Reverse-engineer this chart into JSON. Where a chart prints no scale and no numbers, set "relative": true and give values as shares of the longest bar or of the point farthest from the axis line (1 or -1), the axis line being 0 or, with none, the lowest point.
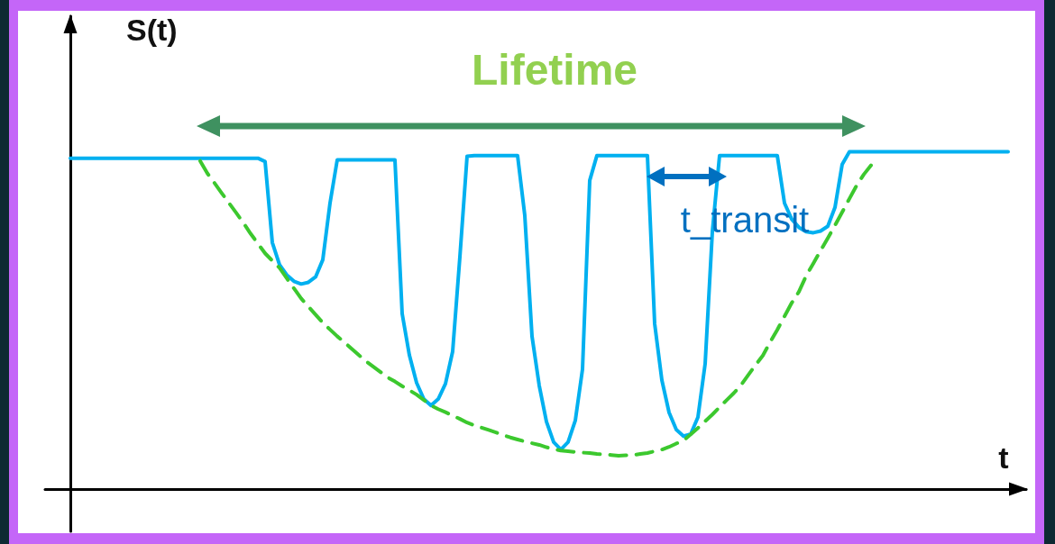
{
  "chart_data": {
    "type": "line",
    "relative": true,
    "xlabel": "t",
    "ylabel": "S(t)",
    "annotations": [
      "Lifetime",
      "t_transit"
    ],
    "marker": "none",
    "categories": [
      null,
      null,
      null,
      null,
      null,
      null,
      null,
      null,
      null,
      null,
      null,
      null,
      null,
      null,
      null,
      null,
      null,
      null,
      null,
      null,
      null,
      null,
      null,
      null,
      null,
      null,
      null,
      null,
      null,
      null,
      null,
      null,
      null,
      null,
      null,
      null,
      null,
      null,
      null,
      null,
      null,
      null,
      null,
      null,
      null,
      null,
      null,
      null,
      null,
      null,
      null,
      null,
      null,
      null,
      null,
      null,
      null,
      null,
      null,
      null,
      null,
      null,
      null,
      null,
      null,
      null,
      null,
      null,
      null,
      null,
      null,
      null,
      null,
      null,
      null,
      null,
      null,
      null,
      null,
      null,
      null,
      null,
      null,
      null,
      null,
      null,
      null,
      null,
      null,
      null,
      null,
      null,
      null,
      null,
      null,
      null,
      null,
      null,
      null,
      null,
      null,
      null,
      null,
      null,
      null,
      null,
      null,
      null,
      null,
      null,
      null,
      null,
      null,
      null,
      null,
      null,
      null,
      null,
      null,
      null,
      null,
      null,
      null,
      null,
      null,
      null,
      null,
      null,
      null,
      null,
      null
    ],
    "series": [
      {
        "color": "#00b0f0",
        "line_style": "solid",
        "values": [
          0.981,
          0.981,
          0.981,
          0.981,
          0.981,
          0.981,
          0.981,
          0.981,
          0.981,
          0.981,
          0.981,
          0.981,
          0.981,
          0.981,
          0.981,
          0.981,
          0.981,
          0.981,
          0.981,
          0.981,
          0.981,
          0.981,
          0.981,
          0.981,
          0.981,
          0.981,
          0.981,
          0.971,
          0.731,
          0.665,
          0.635,
          0.616,
          0.608,
          0.613,
          0.629,
          0.68,
          0.848,
          0.976,
          0.976,
          0.976,
          0.976,
          0.976,
          0.976,
          0.976,
          0.976,
          0.976,
          0.52,
          0.397,
          0.315,
          0.267,
          0.248,
          0.267,
          0.312,
          0.408,
          0.688,
          0.987,
          0.989,
          0.989,
          0.989,
          0.989,
          0.989,
          0.989,
          0.989,
          0.811,
          0.453,
          0.307,
          0.2,
          0.139,
          0.117,
          0.139,
          0.203,
          0.355,
          0.915,
          0.989,
          0.989,
          0.989,
          0.989,
          0.989,
          0.989,
          0.989,
          0.989,
          0.491,
          0.323,
          0.227,
          0.176,
          0.157,
          0.163,
          0.213,
          0.371,
          0.763,
          0.989,
          0.989,
          0.989,
          0.989,
          0.989,
          0.989,
          0.989,
          0.989,
          0.989,
          0.848,
          0.8,
          0.776,
          0.763,
          0.76,
          0.765,
          0.779,
          0.835,
          0.963,
          1,
          1,
          1,
          1,
          1,
          1,
          1,
          1,
          1,
          1,
          1,
          1,
          1,
          1,
          1,
          1,
          1,
          1,
          1,
          1,
          1,
          1,
          1
        ]
      },
      {
        "color": "#3cc82e",
        "line_style": "dashed",
        "values": [
          null,
          null,
          null,
          null,
          null,
          null,
          null,
          null,
          null,
          null,
          null,
          null,
          null,
          null,
          null,
          null,
          null,
          null,
          0.973,
          0.936,
          0.907,
          0.877,
          0.848,
          0.819,
          0.789,
          0.757,
          0.728,
          0.699,
          0.677,
          0.656,
          0.625,
          0.595,
          0.565,
          0.541,
          0.517,
          0.493,
          0.473,
          0.453,
          0.435,
          0.416,
          0.397,
          0.379,
          0.363,
          0.347,
          0.331,
          0.319,
          0.305,
          0.293,
          0.28,
          0.264,
          0.248,
          0.237,
          0.228,
          0.218,
          0.208,
          0.197,
          0.189,
          0.182,
          0.175,
          0.168,
          0.16,
          0.153,
          0.147,
          0.141,
          0.136,
          0.131,
          0.124,
          0.119,
          0.114,
          0.112,
          0.11,
          0.108,
          0.107,
          0.104,
          0.103,
          0.101,
          0.099,
          0.1,
          0.101,
          0.104,
          0.107,
          0.112,
          0.117,
          0.125,
          0.135,
          0.144,
          0.162,
          0.181,
          0.201,
          0.221,
          0.243,
          0.264,
          0.285,
          0.309,
          0.339,
          0.368,
          0.396,
          0.435,
          0.472,
          0.512,
          0.552,
          0.585,
          0.632,
          0.669,
          0.707,
          0.744,
          0.782,
          0.821,
          0.861,
          0.9,
          0.933,
          0.96,
          null,
          null,
          null,
          null,
          null,
          null,
          null,
          null,
          null,
          null,
          null,
          null,
          null,
          null,
          null,
          null,
          null,
          null,
          null
        ]
      }
    ]
  }
}
